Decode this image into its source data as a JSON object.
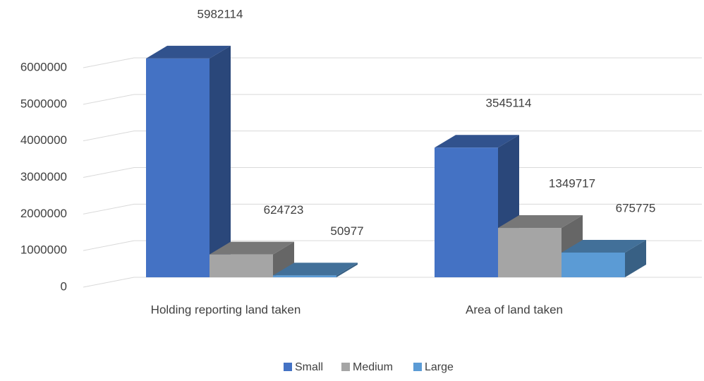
{
  "chart_data": {
    "type": "bar3d",
    "categories": [
      "Holding reporting land taken",
      "Area of land taken"
    ],
    "series": [
      {
        "name": "Small",
        "color": "#4472c4",
        "values": [
          5982114,
          3545114
        ]
      },
      {
        "name": "Medium",
        "color": "#a5a5a5",
        "values": [
          624723,
          1349717
        ]
      },
      {
        "name": "Large",
        "color": "#5b9bd5",
        "values": [
          50977,
          675775
        ]
      }
    ],
    "ylim": [
      0,
      6000000
    ],
    "yticks": [
      0,
      1000000,
      2000000,
      3000000,
      4000000,
      5000000,
      6000000
    ],
    "grid": true,
    "legend": "bottom"
  }
}
